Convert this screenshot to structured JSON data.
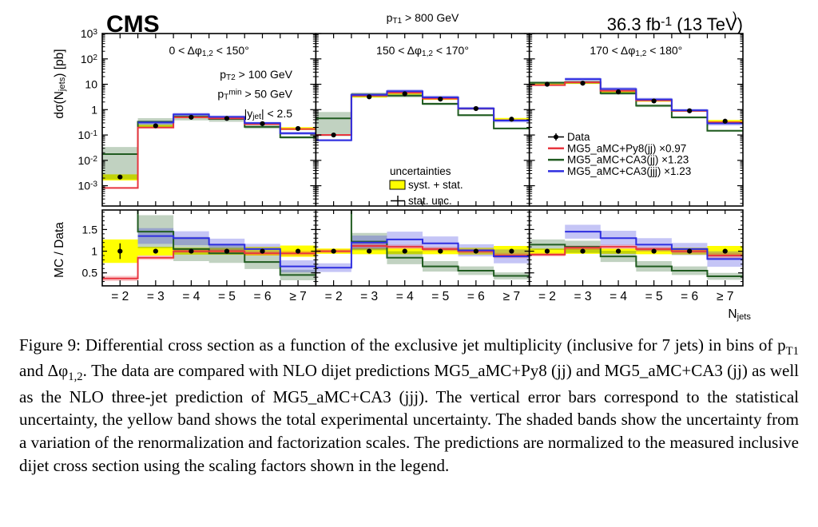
{
  "header": {
    "experiment": "CMS",
    "selection": "p_(T1) > 800 GeV",
    "luminosity": "36.3 fb^(-1) (13 TeV)",
    "corner_artifact": ")"
  },
  "axes": {
    "y_main_label": "dσ(N_(jets)) [pb]",
    "y_ratio_label": "MC / Data",
    "x_label": "N_(jets)",
    "main_yticks": [
      {
        "value": 1000,
        "label": "10^(3)"
      },
      {
        "value": 100,
        "label": "10^(2)"
      },
      {
        "value": 10,
        "label": "10"
      },
      {
        "value": 1,
        "label": "1"
      },
      {
        "value": 0.1,
        "label": "10^(-1)"
      },
      {
        "value": 0.01,
        "label": "10^(-2)"
      },
      {
        "value": 0.001,
        "label": "10^(-3)"
      }
    ],
    "ratio_yticks": [
      {
        "value": 0.5,
        "label": "0.5"
      },
      {
        "value": 1.0,
        "label": "1"
      },
      {
        "value": 1.5,
        "label": "1.5"
      }
    ]
  },
  "panel1_annotations": [
    "p_(T2) > 100 GeV",
    "p_(T)^(min) > 50 GeV",
    "|y_(jet)| <  2.5"
  ],
  "uncertainty_legend": {
    "title": "uncertainties",
    "syst_label": "syst. + stat.",
    "stat_label": "stat. unc."
  },
  "series_legend": [
    {
      "key": "data",
      "label": "Data",
      "color": "#000000"
    },
    {
      "key": "py8",
      "label": "MG5_aMC+Py8(jj) ×0.97",
      "color": "#e8353f"
    },
    {
      "key": "ca3jj",
      "label": "MG5_aMC+CA3(jj) ×1.23",
      "color": "#215c21"
    },
    {
      "key": "ca3jjj",
      "label": "MG5_aMC+CA3(jjj) ×1.23",
      "color": "#2e2ee0"
    }
  ],
  "colors": {
    "data": "#000000",
    "py8": "#e8353f",
    "ca3jj": "#215c21",
    "ca3jjj": "#2e2ee0",
    "syst_band": "#ffff00",
    "frame": "#000000"
  },
  "chart_data": {
    "type": "step-histogram-with-ratio",
    "categories": [
      "= 2",
      "= 3",
      "= 4",
      "= 5",
      "= 6",
      "≥ 7"
    ],
    "xlabel": "N_(jets)",
    "ylabel": "dσ(N_(jets)) [pb]",
    "ratio_ylabel": "MC / Data",
    "y_log_range": [
      0.00016,
      1000
    ],
    "ratio_range": [
      0.2,
      1.95
    ],
    "grid": false,
    "note": "MC values in main panels equal data × ratio; ratio panels show MC/Data with data at 1.0",
    "panels": [
      {
        "label": "0 < Δφ_(1,2) < 150°",
        "data": [
          0.0022,
          0.23,
          0.5,
          0.45,
          0.28,
          0.18
        ],
        "stat_rel": [
          0.18,
          0.02,
          0.02,
          0.02,
          0.03,
          0.05
        ],
        "syst_rel": [
          0.27,
          0.1,
          0.08,
          0.08,
          0.1,
          0.13
        ],
        "series": {
          "py8": {
            "ratio": [
              0.37,
              0.85,
              1.0,
              1.0,
              0.95,
              0.95
            ],
            "band": [
              0.06,
              0.05,
              0.04,
              0.04,
              0.05,
              0.06
            ]
          },
          "ca3jj": {
            "ratio": [
              8.0,
              1.45,
              1.05,
              0.95,
              0.75,
              0.45
            ],
            "band": [
              0.9,
              0.38,
              0.28,
              0.22,
              0.16,
              0.12
            ]
          },
          "ca3jjj": {
            "ratio": [
              null,
              1.35,
              1.3,
              1.15,
              1.05,
              0.65
            ],
            "band": [
              null,
              0.18,
              0.16,
              0.14,
              0.12,
              0.14
            ]
          }
        }
      },
      {
        "label": "150 < Δφ_(1,2) < 170°",
        "data": [
          0.1,
          3.2,
          4.2,
          2.6,
          1.1,
          0.42
        ],
        "stat_rel": [
          0.04,
          0.01,
          0.01,
          0.01,
          0.02,
          0.04
        ],
        "syst_rel": [
          0.06,
          0.07,
          0.07,
          0.07,
          0.08,
          0.12
        ],
        "series": {
          "py8": {
            "ratio": [
              1.0,
              1.12,
              1.1,
              1.05,
              1.0,
              0.9
            ],
            "band": [
              0.04,
              0.05,
              0.05,
              0.05,
              0.05,
              0.06
            ]
          },
          "ca3jj": {
            "ratio": [
              4.5,
              1.22,
              0.85,
              0.65,
              0.55,
              0.43
            ],
            "band": [
              0.8,
              0.2,
              0.15,
              0.12,
              0.1,
              0.08
            ]
          },
          "ca3jjj": {
            "ratio": [
              0.62,
              1.2,
              1.27,
              1.18,
              1.02,
              0.88
            ],
            "band": [
              0.1,
              0.16,
              0.18,
              0.16,
              0.14,
              0.16
            ]
          }
        }
      },
      {
        "label": "170 < Δφ_(1,2) < 180°",
        "data": [
          10.0,
          11.0,
          5.0,
          2.2,
          0.9,
          0.35
        ],
        "stat_rel": [
          0.02,
          0.01,
          0.01,
          0.01,
          0.02,
          0.04
        ],
        "syst_rel": [
          0.06,
          0.06,
          0.06,
          0.07,
          0.08,
          0.12
        ],
        "series": {
          "py8": {
            "ratio": [
              0.92,
              1.08,
              1.1,
              1.05,
              1.0,
              0.9
            ],
            "band": [
              0.04,
              0.05,
              0.05,
              0.05,
              0.05,
              0.06
            ]
          },
          "ca3jj": {
            "ratio": [
              1.15,
              1.1,
              0.88,
              0.65,
              0.55,
              0.42
            ],
            "band": [
              0.12,
              0.14,
              0.13,
              0.12,
              0.1,
              0.08
            ]
          },
          "ca3jjj": {
            "ratio": [
              null,
              1.45,
              1.3,
              1.15,
              1.05,
              0.82
            ],
            "band": [
              null,
              0.16,
              0.17,
              0.15,
              0.14,
              0.18
            ]
          }
        }
      }
    ]
  },
  "caption": {
    "text": "Figure 9:  Differential cross section as a function of the exclusive jet multiplicity (inclusive for 7 jets) in bins of p_(T1) and Δφ_(1,2).  The data are compared with NLO dijet predictions MG5_aMC+Py8 (jj) and MG5_aMC+CA3 (jj) as well as the NLO three-jet prediction of MG5_aMC+CA3 (jjj).  The vertical error bars correspond to the statistical uncertainty, the yellow band shows the total experimental uncertainty.  The shaded bands show the uncertainty from a variation of the renormalization and factorization scales.  The predictions are normalized to the measured inclusive dijet cross section using the scaling factors shown in the legend."
  }
}
